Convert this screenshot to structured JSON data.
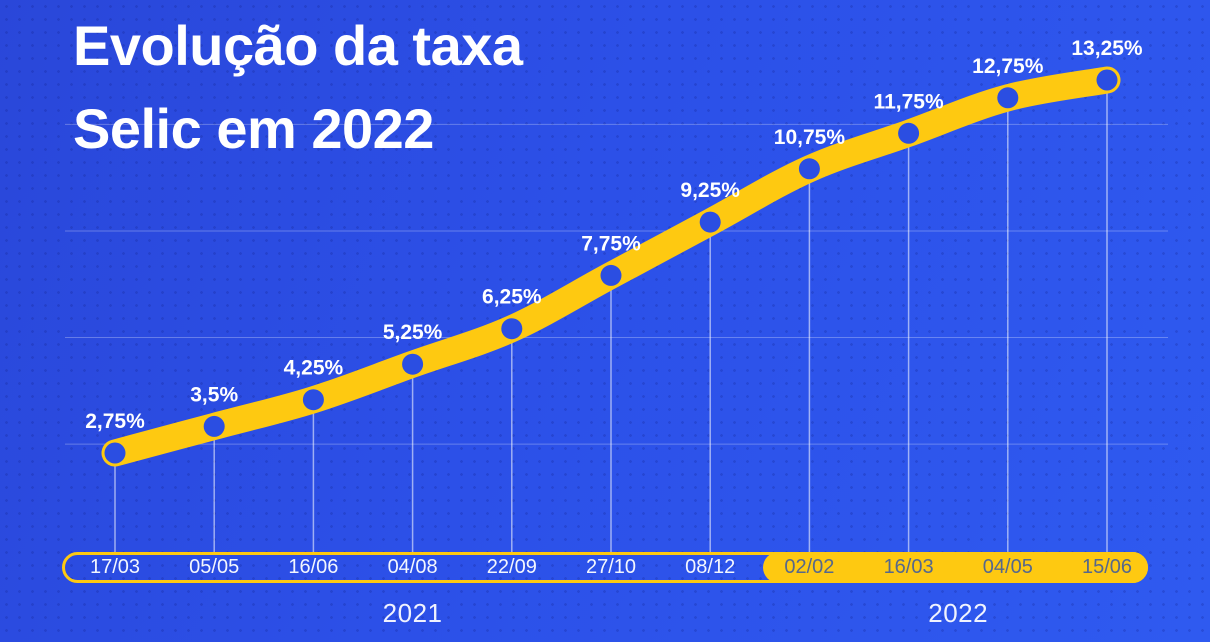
{
  "title": {
    "line1": "Evolução da taxa",
    "line2": "Selic em 2022"
  },
  "chart_data": {
    "type": "line",
    "title": "Evolução da taxa Selic em 2022",
    "categories": [
      "17/03",
      "05/05",
      "16/06",
      "04/08",
      "22/09",
      "27/10",
      "08/12",
      "02/02",
      "16/03",
      "04/05",
      "15/06"
    ],
    "values": [
      2.75,
      3.5,
      4.25,
      5.25,
      6.25,
      7.75,
      9.25,
      10.75,
      11.75,
      12.75,
      13.25
    ],
    "point_labels": [
      "2,75%",
      "3,5%",
      "4,25%",
      "5,25%",
      "6,25%",
      "7,75%",
      "9,25%",
      "10,75%",
      "11,75%",
      "12,75%",
      "13,25%"
    ],
    "sections": [
      {
        "year": "2021",
        "from": 0,
        "to": 6,
        "style": "outlined"
      },
      {
        "year": "2022",
        "from": 7,
        "to": 10,
        "style": "filled"
      }
    ],
    "gridline_values": [
      3,
      6,
      9,
      12
    ],
    "ylim": [
      2.75,
      13.25
    ],
    "xlabel": "",
    "ylabel": "",
    "legend": "none",
    "grid": "horizontal",
    "colors": {
      "background": "#2c50e8",
      "line": "#fec911",
      "point": "#2b4ee2",
      "value_label": "#ffffff",
      "grid_line": "rgba(255,255,255,0.28)",
      "drop_line": "rgba(255,255,255,0.55)",
      "date_2021_text": "#f3f6fe",
      "date_2022_text": "#56688c"
    }
  }
}
